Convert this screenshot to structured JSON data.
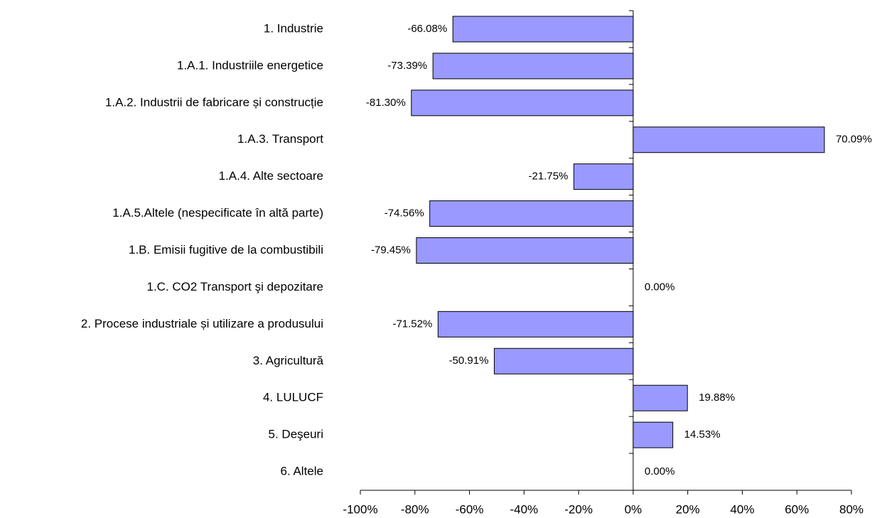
{
  "chart_data": {
    "type": "bar",
    "orientation": "horizontal",
    "categories": [
      "1. Industrie",
      "1.A.1. Industriile energetice",
      "1.A.2. Industrii de fabricare și construcție",
      "1.A.3. Transport",
      "1.A.4. Alte sectoare",
      "1.A.5.Altele (nespecificate în altă parte)",
      "1.B. Emisii fugitive de la combustibili",
      "1.C. CO2 Transport şi depozitare",
      "2. Procese industriale și utilizare a produsului",
      "3. Agricultură",
      "4. LULUCF",
      "5. Deşeuri",
      "6. Altele"
    ],
    "values": [
      -66.08,
      -73.39,
      -81.3,
      70.09,
      -21.75,
      -74.56,
      -79.45,
      0.0,
      -71.52,
      -50.91,
      19.88,
      14.53,
      0.0
    ],
    "value_labels": [
      "-66.08%",
      "-73.39%",
      "-81.30%",
      "70.09%",
      "-21.75%",
      "-74.56%",
      "-79.45%",
      "0.00%",
      "-71.52%",
      "-50.91%",
      "19.88%",
      "14.53%",
      "0.00%"
    ],
    "color": "#9999ff",
    "xlim": [
      -100,
      80
    ],
    "xticks": [
      {
        "value": -100,
        "label": "-100%"
      },
      {
        "value": -80,
        "label": "-80%"
      },
      {
        "value": -60,
        "label": "-60%"
      },
      {
        "value": -40,
        "label": "-40%"
      },
      {
        "value": -20,
        "label": "-20%"
      },
      {
        "value": 0,
        "label": "0%"
      },
      {
        "value": 20,
        "label": "20%"
      },
      {
        "value": 40,
        "label": "40%"
      },
      {
        "value": 60,
        "label": "60%"
      },
      {
        "value": 80,
        "label": "80%"
      }
    ],
    "grid": false
  }
}
